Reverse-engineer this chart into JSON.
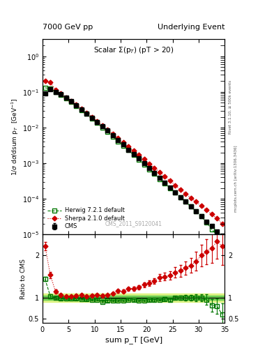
{
  "title_left": "7000 GeV pp",
  "title_right": "Underlying Event",
  "plot_title": "Scalar Σ(pₜ) (pT > 20)",
  "ylabel_main": "1/σ dσ/dsum p_T  [GeV⁻¹]",
  "ylabel_ratio": "Ratio to CMS",
  "xlabel": "sum p_T [GeV]",
  "rivet_label": "Rivet 3.1.10, ≥ 500k events",
  "mcplots_label": "mcplots.cern.ch [arXiv:1306.3436]",
  "cms_watermark": "CMS_2011_S9120041",
  "legend_entries": [
    "CMS",
    "Herwig 7.2.1 default",
    "Sherpa 2.1.0 default"
  ],
  "cms_x": [
    0.5,
    1.5,
    2.5,
    3.5,
    4.5,
    5.5,
    6.5,
    7.5,
    8.5,
    9.5,
    10.5,
    11.5,
    12.5,
    13.5,
    14.5,
    15.5,
    16.5,
    17.5,
    18.5,
    19.5,
    20.5,
    21.5,
    22.5,
    23.5,
    24.5,
    25.5,
    26.5,
    27.5,
    28.5,
    29.5,
    30.5,
    31.5,
    32.5,
    33.5,
    34.5
  ],
  "cms_y": [
    0.09,
    0.12,
    0.1,
    0.085,
    0.068,
    0.054,
    0.042,
    0.032,
    0.025,
    0.019,
    0.014,
    0.011,
    0.0082,
    0.006,
    0.0044,
    0.0033,
    0.0024,
    0.0018,
    0.00135,
    0.00098,
    0.00072,
    0.00053,
    0.00038,
    0.00028,
    0.00021,
    0.00015,
    0.00011,
    8.2e-05,
    6e-05,
    4.4e-05,
    3.2e-05,
    2.3e-05,
    1.7e-05,
    1.2e-05,
    9e-06
  ],
  "cms_yerr": [
    0.005,
    0.006,
    0.005,
    0.004,
    0.003,
    0.002,
    0.002,
    0.0015,
    0.001,
    0.0009,
    0.0006,
    0.0005,
    0.0004,
    0.0003,
    0.0002,
    0.00015,
    0.0001,
    9e-05,
    7e-05,
    5e-05,
    4e-05,
    3e-05,
    2e-05,
    1.5e-05,
    1e-05,
    8e-06,
    6e-06,
    5e-06,
    4e-06,
    3e-06,
    2.5e-06,
    2e-06,
    1.5e-06,
    1.2e-06,
    9e-07
  ],
  "herwig_x": [
    0.5,
    1.5,
    2.5,
    3.5,
    4.5,
    5.5,
    6.5,
    7.5,
    8.5,
    9.5,
    10.5,
    11.5,
    12.5,
    13.5,
    14.5,
    15.5,
    16.5,
    17.5,
    18.5,
    19.5,
    20.5,
    21.5,
    22.5,
    23.5,
    24.5,
    25.5,
    26.5,
    27.5,
    28.5,
    29.5,
    30.5,
    31.5,
    32.5,
    33.5,
    34.5
  ],
  "herwig_y": [
    0.13,
    0.125,
    0.1,
    0.083,
    0.067,
    0.053,
    0.041,
    0.031,
    0.024,
    0.018,
    0.0134,
    0.01,
    0.0076,
    0.0056,
    0.0041,
    0.0031,
    0.0023,
    0.0017,
    0.00126,
    0.00092,
    0.00068,
    0.0005,
    0.00036,
    0.00027,
    0.0002,
    0.00015,
    0.00011,
    8.2e-05,
    6e-05,
    4.4e-05,
    3.2e-05,
    2.2e-05,
    1.4e-05,
    9.6e-06,
    5.5e-06
  ],
  "sherpa_x": [
    0.5,
    1.5,
    2.5,
    3.5,
    4.5,
    5.5,
    6.5,
    7.5,
    8.5,
    9.5,
    10.5,
    11.5,
    12.5,
    13.5,
    14.5,
    15.5,
    16.5,
    17.5,
    18.5,
    19.5,
    20.5,
    21.5,
    22.5,
    23.5,
    24.5,
    25.5,
    26.5,
    27.5,
    28.5,
    29.5,
    30.5,
    31.5,
    32.5,
    33.5,
    34.5
  ],
  "sherpa_y": [
    0.2,
    0.185,
    0.115,
    0.09,
    0.07,
    0.056,
    0.044,
    0.034,
    0.026,
    0.02,
    0.015,
    0.0115,
    0.0087,
    0.0066,
    0.0051,
    0.0038,
    0.0029,
    0.0022,
    0.00168,
    0.00128,
    0.00097,
    0.00074,
    0.00056,
    0.00042,
    0.00032,
    0.00024,
    0.00018,
    0.00014,
    0.000106,
    8.2e-05,
    6.4e-05,
    4.8e-05,
    3.7e-05,
    2.8e-05,
    2e-05
  ],
  "herwig_ratio": [
    1.44,
    1.04,
    1.0,
    0.976,
    0.985,
    0.981,
    0.976,
    0.969,
    0.96,
    0.947,
    0.957,
    0.909,
    0.927,
    0.933,
    0.932,
    0.939,
    0.958,
    0.944,
    0.933,
    0.939,
    0.944,
    0.943,
    0.947,
    0.964,
    0.952,
    1.0,
    1.0,
    1.0,
    1.0,
    1.0,
    1.0,
    0.957,
    0.824,
    0.8,
    0.611
  ],
  "sherpa_ratio": [
    2.22,
    1.54,
    1.15,
    1.06,
    1.03,
    1.037,
    1.048,
    1.063,
    1.04,
    1.053,
    1.071,
    1.045,
    1.061,
    1.1,
    1.159,
    1.152,
    1.208,
    1.222,
    1.244,
    1.306,
    1.347,
    1.396,
    1.474,
    1.5,
    1.524,
    1.6,
    1.636,
    1.707,
    1.767,
    1.864,
    2.0,
    2.087,
    2.176,
    2.333,
    2.222
  ],
  "herwig_ratio_err": [
    0.05,
    0.04,
    0.03,
    0.03,
    0.02,
    0.02,
    0.02,
    0.02,
    0.02,
    0.02,
    0.02,
    0.02,
    0.02,
    0.02,
    0.02,
    0.02,
    0.02,
    0.02,
    0.02,
    0.02,
    0.02,
    0.02,
    0.02,
    0.03,
    0.03,
    0.04,
    0.05,
    0.06,
    0.07,
    0.08,
    0.09,
    0.12,
    0.15,
    0.18,
    0.25
  ],
  "sherpa_ratio_err": [
    0.1,
    0.07,
    0.05,
    0.04,
    0.03,
    0.03,
    0.03,
    0.03,
    0.03,
    0.03,
    0.03,
    0.03,
    0.03,
    0.03,
    0.04,
    0.04,
    0.04,
    0.05,
    0.05,
    0.06,
    0.06,
    0.07,
    0.08,
    0.09,
    0.1,
    0.12,
    0.14,
    0.16,
    0.18,
    0.22,
    0.25,
    0.3,
    0.35,
    0.4,
    0.45
  ],
  "band_5pct_color": "#33bb33",
  "band_10pct_color": "#ccee44",
  "cms_color": "#000000",
  "herwig_color": "#007700",
  "sherpa_color": "#cc0000",
  "bg_color": "#ffffff",
  "ylim_main": [
    1e-05,
    3.0
  ],
  "ylim_ratio": [
    0.4,
    2.5
  ],
  "xlim": [
    0,
    35
  ]
}
